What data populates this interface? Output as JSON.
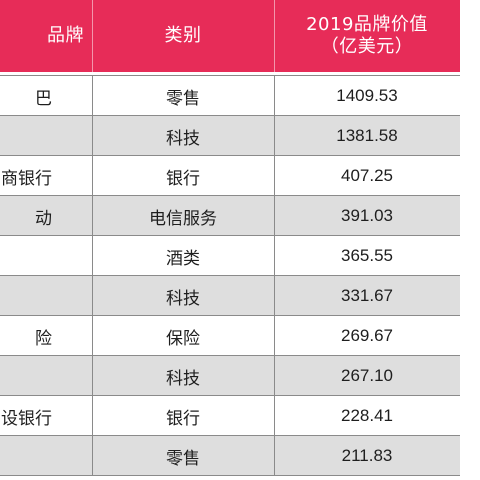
{
  "table": {
    "headers": {
      "brand": "品牌",
      "category": "类别",
      "value_line1": "2019品牌价值",
      "value_line2": "（亿美元）"
    },
    "rows": [
      {
        "brand": "巴",
        "category": "零售",
        "value": "1409.53"
      },
      {
        "brand": "",
        "category": "科技",
        "value": "1381.58"
      },
      {
        "brand": "商银行",
        "category": "银行",
        "value": "407.25"
      },
      {
        "brand": "动",
        "category": "电信服务",
        "value": "391.03"
      },
      {
        "brand": "",
        "category": "酒类",
        "value": "365.55"
      },
      {
        "brand": "",
        "category": "科技",
        "value": "331.67"
      },
      {
        "brand": "险",
        "category": "保险",
        "value": "269.67"
      },
      {
        "brand": "",
        "category": "科技",
        "value": "267.10"
      },
      {
        "brand": "设银行",
        "category": "银行",
        "value": "228.41"
      },
      {
        "brand": "",
        "category": "零售",
        "value": "211.83"
      }
    ]
  },
  "colors": {
    "header_background": "#e72c58",
    "header_text": "#ffffff",
    "alternate_row": "#dedede",
    "grid_line": "#8a8a8a"
  }
}
